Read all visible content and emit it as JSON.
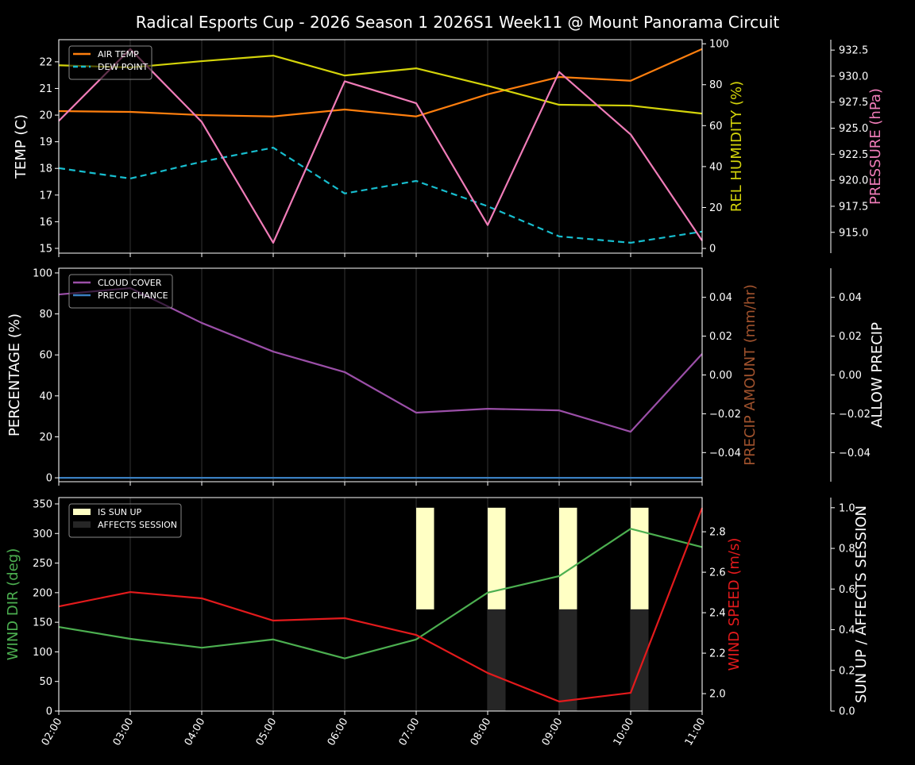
{
  "title": "Radical Esports Cup - 2026 Season 1 2026S1 Week11 @ Mount Panorama Circuit",
  "colors": {
    "background": "#000000",
    "air_temp": "#ff7f0e",
    "dew_point": "#17becf",
    "humidity": "#d4d40a",
    "pressure": "#f07cb8",
    "cloud_cover": "#9b4fa8",
    "precip_chance": "#3a7fc0",
    "precip_amount_label": "#a0522d",
    "wind_dir": "#4caf50",
    "wind_speed": "#e31a1c",
    "sun_up": "#ffffc4",
    "affects_session": "#262626"
  },
  "chart_data": [
    {
      "type": "line",
      "x": [
        "02:00",
        "03:00",
        "04:00",
        "05:00",
        "06:00",
        "07:00",
        "08:00",
        "09:00",
        "10:00",
        "11:00"
      ],
      "grid": "vertical",
      "legend_placement": "upper-left",
      "ylabel": "TEMP (C)",
      "ylim": [
        14.82,
        22.83
      ],
      "yticks": [
        15,
        16,
        17,
        18,
        19,
        20,
        21,
        22
      ],
      "ylabel_right": "REL HUMIDITY (%)",
      "ylim_right": [
        -2.3,
        102
      ],
      "yticks_right": [
        0,
        20,
        40,
        60,
        80,
        100
      ],
      "ylabel_right2": "PRESSURE (hPa)",
      "ylim_right2": [
        913.0,
        933.5
      ],
      "yticks_right2": [
        "915.0",
        "917.5",
        "920.0",
        "922.5",
        "925.0",
        "927.5",
        "930.0",
        "932.5"
      ],
      "series": [
        {
          "name": "AIR TEMP",
          "axis": "left",
          "style": "solid",
          "color_key": "air_temp",
          "values": [
            20.15,
            20.12,
            20.0,
            19.95,
            20.21,
            19.95,
            20.78,
            21.43,
            21.29,
            22.48
          ]
        },
        {
          "name": "DEW POINT",
          "axis": "left",
          "style": "dashed",
          "color_key": "dew_point",
          "values": [
            18.01,
            17.62,
            18.25,
            18.78,
            17.06,
            17.53,
            16.58,
            15.45,
            15.21,
            15.63
          ]
        },
        {
          "axis": "right",
          "style": "solid",
          "color_key": "humidity",
          "values": [
            89.5,
            88.4,
            91.5,
            94.2,
            84.5,
            88.0,
            79.5,
            70.2,
            69.8,
            65.9
          ]
        },
        {
          "axis": "right2",
          "style": "solid",
          "color_key": "pressure",
          "values": [
            925.7,
            932.6,
            925.6,
            914.0,
            929.5,
            927.4,
            915.7,
            930.4,
            924.4,
            914.2
          ]
        }
      ]
    },
    {
      "type": "line",
      "x": [
        "02:00",
        "03:00",
        "04:00",
        "05:00",
        "06:00",
        "07:00",
        "08:00",
        "09:00",
        "10:00",
        "11:00"
      ],
      "grid": "vertical",
      "legend_placement": "upper-left",
      "ylabel": "PERCENTAGE (%)",
      "ylim": [
        -1.9,
        102.3
      ],
      "yticks": [
        0,
        20,
        40,
        60,
        80,
        100
      ],
      "ylabel_right": "PRECIP AMOUNT (mm/hr)",
      "ylim_right": [
        -0.055,
        0.055
      ],
      "yticks_right": [
        "−0.04",
        "−0.02",
        "0.00",
        "0.02",
        "0.04"
      ],
      "yticks_right_values": [
        -0.04,
        -0.02,
        0,
        0.02,
        0.04
      ],
      "ylabel_right2": "ALLOW PRECIP",
      "ylim_right2": [
        -0.055,
        0.055
      ],
      "yticks_right2": [
        "−0.04",
        "−0.02",
        "0.00",
        "0.02",
        "0.04"
      ],
      "yticks_right2_values": [
        -0.04,
        -0.02,
        0,
        0.02,
        0.04
      ],
      "series": [
        {
          "name": "CLOUD COVER",
          "axis": "left",
          "style": "solid",
          "color_key": "cloud_cover",
          "values": [
            89.5,
            92.6,
            75.6,
            61.6,
            51.6,
            31.8,
            33.7,
            32.9,
            22.5,
            60.5
          ]
        },
        {
          "name": "PRECIP CHANCE",
          "axis": "left",
          "style": "solid",
          "color_key": "precip_chance",
          "values": [
            0,
            0,
            0,
            0,
            0,
            0,
            0,
            0,
            0,
            0
          ]
        }
      ]
    },
    {
      "type": "line",
      "x": [
        "02:00",
        "03:00",
        "04:00",
        "05:00",
        "06:00",
        "07:00",
        "08:00",
        "09:00",
        "10:00",
        "11:00"
      ],
      "xtick_labels": [
        "02:00",
        "03:00",
        "04:00",
        "05:00",
        "06:00",
        "07:00",
        "08:00",
        "09:00",
        "10:00",
        "11:00"
      ],
      "grid": "vertical",
      "legend_placement": "upper-left",
      "ylabel": "WIND DIR (deg)",
      "ylim": [
        0,
        360.7
      ],
      "yticks": [
        0,
        50,
        100,
        150,
        200,
        250,
        300,
        350
      ],
      "ylabel_right": "WIND SPEED (m/s)",
      "ylim_right": [
        1.914,
        2.969
      ],
      "yticks_right": [
        "2.0",
        "2.2",
        "2.4",
        "2.6",
        "2.8"
      ],
      "yticks_right_values": [
        2.0,
        2.2,
        2.4,
        2.6,
        2.8
      ],
      "ylabel_right2": "SUN UP / AFFECTS SESSION",
      "ylim_right2": [
        0,
        1.05
      ],
      "yticks_right2": [
        "0.0",
        "0.2",
        "0.4",
        "0.6",
        "0.8",
        "1.0"
      ],
      "yticks_right2_values": [
        0,
        0.2,
        0.4,
        0.6,
        0.8,
        1.0
      ],
      "series": [
        {
          "axis": "left",
          "style": "solid",
          "color_key": "wind_dir",
          "values": [
            142,
            122,
            107,
            121,
            89,
            121,
            200,
            228,
            308,
            277
          ]
        },
        {
          "axis": "right",
          "style": "solid",
          "color_key": "wind_speed",
          "values": [
            2.431,
            2.502,
            2.471,
            2.361,
            2.373,
            2.29,
            2.102,
            1.961,
            2.004,
            2.918
          ]
        }
      ],
      "bars": [
        {
          "name": "IS SUN UP",
          "color_key": "sun_up",
          "values": [
            0,
            0,
            0,
            0,
            0,
            1,
            1,
            1,
            1,
            0
          ]
        },
        {
          "name": "AFFECTS SESSION",
          "color_key": "affects_session",
          "values": [
            0,
            0,
            0,
            0,
            0,
            0,
            1,
            1,
            1,
            0
          ]
        }
      ]
    }
  ]
}
